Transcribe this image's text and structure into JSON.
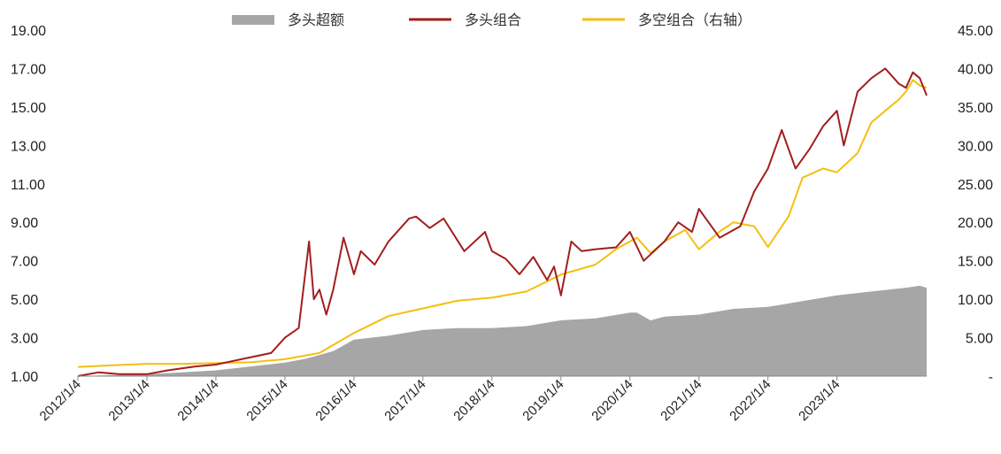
{
  "chart_data": {
    "type": "line",
    "title": "",
    "xlabel": "",
    "ylabel": "",
    "y2label": "",
    "x_ticks": [
      "2012/1/4",
      "2013/1/4",
      "2014/1/4",
      "2015/1/4",
      "2016/1/4",
      "2017/1/4",
      "2018/1/4",
      "2019/1/4",
      "2020/1/4",
      "2021/1/4",
      "2022/1/4",
      "2023/1/4"
    ],
    "y_left": {
      "ticks": [
        "1.00",
        "3.00",
        "5.00",
        "7.00",
        "9.00",
        "11.00",
        "13.00",
        "15.00",
        "17.00",
        "19.00"
      ],
      "range": [
        1,
        19
      ]
    },
    "y_right": {
      "ticks": [
        "-",
        "5.00",
        "10.00",
        "15.00",
        "20.00",
        "25.00",
        "30.00",
        "35.00",
        "40.00",
        "45.00"
      ],
      "range": [
        0,
        45
      ]
    },
    "x_range": [
      2012.0,
      2024.3
    ],
    "legend": {
      "position": "top-center",
      "items": [
        {
          "label": "多头超额",
          "shape": "bar",
          "color": "#a6a6a6"
        },
        {
          "label": "多头组合",
          "shape": "line",
          "color": "#a31e1e"
        },
        {
          "label": "多空组合（右轴）",
          "shape": "line",
          "color": "#f4bf0f"
        }
      ]
    },
    "series": [
      {
        "name": "多头超额",
        "type": "area",
        "axis": "left",
        "color": "#a6a6a6",
        "x": [
          2012.0,
          2012.5,
          2013.0,
          2013.5,
          2014.0,
          2014.5,
          2015.0,
          2015.3,
          2015.5,
          2015.7,
          2016.0,
          2016.5,
          2017.0,
          2017.5,
          2018.0,
          2018.5,
          2019.0,
          2019.5,
          2020.0,
          2020.1,
          2020.3,
          2020.5,
          2021.0,
          2021.5,
          2022.0,
          2022.5,
          2023.0,
          2023.5,
          2024.0,
          2024.2,
          2024.3
        ],
        "values": [
          1.0,
          1.05,
          1.1,
          1.2,
          1.3,
          1.5,
          1.7,
          1.9,
          2.1,
          2.3,
          2.9,
          3.1,
          3.4,
          3.5,
          3.5,
          3.6,
          3.9,
          4.0,
          4.3,
          4.3,
          3.9,
          4.1,
          4.2,
          4.5,
          4.6,
          4.9,
          5.2,
          5.4,
          5.6,
          5.7,
          5.6
        ]
      },
      {
        "name": "多头组合",
        "type": "line",
        "axis": "left",
        "color": "#a31e1e",
        "x": [
          2012.0,
          2012.3,
          2012.6,
          2013.0,
          2013.3,
          2013.7,
          2014.0,
          2014.4,
          2014.8,
          2015.0,
          2015.2,
          2015.35,
          2015.42,
          2015.5,
          2015.6,
          2015.7,
          2015.85,
          2016.0,
          2016.1,
          2016.3,
          2016.5,
          2016.8,
          2016.9,
          2017.1,
          2017.3,
          2017.6,
          2017.9,
          2018.0,
          2018.2,
          2018.4,
          2018.6,
          2018.8,
          2018.9,
          2019.0,
          2019.15,
          2019.3,
          2019.5,
          2019.8,
          2020.0,
          2020.2,
          2020.5,
          2020.7,
          2020.9,
          2021.0,
          2021.1,
          2021.3,
          2021.6,
          2021.8,
          2022.0,
          2022.2,
          2022.4,
          2022.6,
          2022.8,
          2023.0,
          2023.1,
          2023.3,
          2023.5,
          2023.7,
          2023.9,
          2024.0,
          2024.1,
          2024.2,
          2024.3
        ],
        "values": [
          1.0,
          1.2,
          1.1,
          1.1,
          1.3,
          1.5,
          1.6,
          1.9,
          2.2,
          3.0,
          3.5,
          8.0,
          5.0,
          5.5,
          4.2,
          5.5,
          8.2,
          6.3,
          7.5,
          6.8,
          8.0,
          9.2,
          9.3,
          8.7,
          9.2,
          7.5,
          8.5,
          7.5,
          7.1,
          6.3,
          7.2,
          6.0,
          6.7,
          5.2,
          8.0,
          7.5,
          7.6,
          7.7,
          8.5,
          7.0,
          8.0,
          9.0,
          8.5,
          9.7,
          9.2,
          8.2,
          8.8,
          10.6,
          11.8,
          13.8,
          11.8,
          12.8,
          14.0,
          14.8,
          13.0,
          15.8,
          16.5,
          17.0,
          16.2,
          16.0,
          16.8,
          16.5,
          15.6
        ]
      },
      {
        "name": "多空组合（右轴）",
        "type": "line",
        "axis": "right",
        "color": "#f4bf0f",
        "x": [
          2012.0,
          2012.5,
          2013.0,
          2013.5,
          2014.0,
          2014.5,
          2015.0,
          2015.5,
          2016.0,
          2016.5,
          2017.0,
          2017.5,
          2018.0,
          2018.5,
          2019.0,
          2019.5,
          2019.8,
          2020.0,
          2020.1,
          2020.3,
          2020.5,
          2020.8,
          2021.0,
          2021.3,
          2021.5,
          2021.8,
          2022.0,
          2022.3,
          2022.5,
          2022.8,
          2023.0,
          2023.3,
          2023.5,
          2023.7,
          2023.9,
          2024.0,
          2024.1,
          2024.2,
          2024.3
        ],
        "values": [
          1.2,
          1.4,
          1.6,
          1.6,
          1.7,
          1.8,
          2.2,
          3.0,
          5.6,
          7.8,
          8.8,
          9.8,
          10.2,
          11.0,
          13.2,
          14.5,
          16.5,
          17.5,
          18.0,
          16.0,
          17.5,
          19.0,
          16.5,
          18.8,
          20.0,
          19.5,
          16.8,
          20.8,
          25.8,
          27.0,
          26.5,
          29.0,
          33.0,
          34.5,
          36.0,
          37.0,
          38.5,
          37.8,
          37.5
        ]
      }
    ]
  }
}
